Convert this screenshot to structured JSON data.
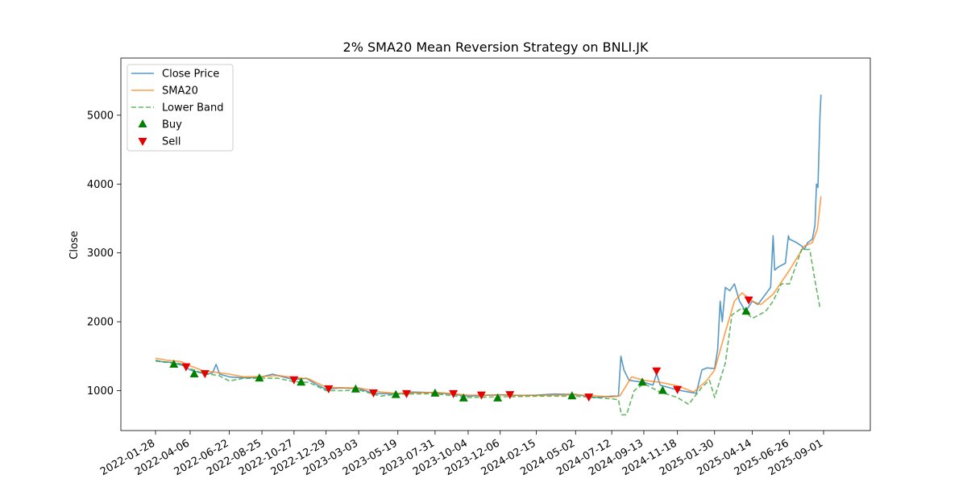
{
  "chart_data": {
    "type": "line",
    "title": "2% SMA20 Mean Reversion Strategy on BNLI.JK",
    "xlabel": "",
    "ylabel": "Close",
    "ylim": [
      420,
      5830
    ],
    "y_ticks": [
      1000,
      2000,
      3000,
      4000,
      5000
    ],
    "x_ticks": [
      "2022-01-28",
      "2022-04-06",
      "2022-06-22",
      "2022-08-25",
      "2022-10-27",
      "2022-12-29",
      "2023-03-03",
      "2023-05-19",
      "2023-07-31",
      "2023-10-04",
      "2023-12-06",
      "2024-02-15",
      "2024-05-02",
      "2024-07-12",
      "2024-09-13",
      "2024-11-18",
      "2025-01-30",
      "2025-04-14",
      "2025-06-26",
      "2025-09-01"
    ],
    "grid": false,
    "legend_position": "top-left",
    "series": [
      {
        "name": "Close Price",
        "kind": "line",
        "color": "#1f77b4",
        "points": [
          [
            "2022-01-28",
            1440
          ],
          [
            "2022-02-10",
            1420
          ],
          [
            "2022-03-01",
            1410
          ],
          [
            "2022-03-25",
            1360
          ],
          [
            "2022-04-06",
            1300
          ],
          [
            "2022-04-20",
            1270
          ],
          [
            "2022-05-10",
            1240
          ],
          [
            "2022-05-20",
            1260
          ],
          [
            "2022-05-27",
            1380
          ],
          [
            "2022-06-03",
            1240
          ],
          [
            "2022-06-22",
            1200
          ],
          [
            "2022-07-10",
            1190
          ],
          [
            "2022-08-01",
            1185
          ],
          [
            "2022-08-25",
            1200
          ],
          [
            "2022-09-15",
            1240
          ],
          [
            "2022-10-05",
            1200
          ],
          [
            "2022-10-27",
            1160
          ],
          [
            "2022-11-20",
            1180
          ],
          [
            "2022-12-10",
            1090
          ],
          [
            "2022-12-29",
            1020
          ],
          [
            "2023-01-25",
            1040
          ],
          [
            "2023-03-03",
            1030
          ],
          [
            "2023-04-01",
            960
          ],
          [
            "2023-05-19",
            950
          ],
          [
            "2023-06-15",
            980
          ],
          [
            "2023-07-31",
            970
          ],
          [
            "2023-09-01",
            950
          ],
          [
            "2023-10-04",
            920
          ],
          [
            "2023-11-05",
            930
          ],
          [
            "2023-12-06",
            940
          ],
          [
            "2024-01-15",
            930
          ],
          [
            "2024-02-15",
            935
          ],
          [
            "2024-03-20",
            950
          ],
          [
            "2024-05-02",
            945
          ],
          [
            "2024-06-10",
            900
          ],
          [
            "2024-07-12",
            920
          ],
          [
            "2024-07-25",
            920
          ],
          [
            "2024-07-30",
            1500
          ],
          [
            "2024-08-05",
            1300
          ],
          [
            "2024-08-15",
            1150
          ],
          [
            "2024-09-13",
            1120
          ],
          [
            "2024-10-01",
            1080
          ],
          [
            "2024-10-08",
            1250
          ],
          [
            "2024-10-15",
            1080
          ],
          [
            "2024-11-18",
            1010
          ],
          [
            "2024-12-10",
            980
          ],
          [
            "2024-12-25",
            960
          ],
          [
            "2025-01-05",
            1300
          ],
          [
            "2025-01-15",
            1330
          ],
          [
            "2025-01-30",
            1320
          ],
          [
            "2025-02-05",
            1600
          ],
          [
            "2025-02-10",
            2300
          ],
          [
            "2025-02-14",
            2000
          ],
          [
            "2025-02-20",
            2500
          ],
          [
            "2025-03-01",
            2450
          ],
          [
            "2025-03-10",
            2550
          ],
          [
            "2025-03-20",
            2300
          ],
          [
            "2025-04-01",
            2150
          ],
          [
            "2025-04-14",
            2300
          ],
          [
            "2025-04-25",
            2250
          ],
          [
            "2025-05-10",
            2400
          ],
          [
            "2025-05-20",
            2500
          ],
          [
            "2025-05-25",
            3250
          ],
          [
            "2025-05-28",
            2750
          ],
          [
            "2025-06-05",
            2800
          ],
          [
            "2025-06-18",
            2850
          ],
          [
            "2025-06-24",
            3250
          ],
          [
            "2025-06-26",
            3200
          ],
          [
            "2025-07-10",
            3150
          ],
          [
            "2025-07-20",
            3100
          ],
          [
            "2025-07-25",
            3050
          ],
          [
            "2025-08-01",
            3150
          ],
          [
            "2025-08-10",
            3200
          ],
          [
            "2025-08-15",
            3400
          ],
          [
            "2025-08-18",
            4000
          ],
          [
            "2025-08-21",
            3950
          ],
          [
            "2025-08-25",
            5000
          ],
          [
            "2025-08-27",
            5300
          ]
        ]
      },
      {
        "name": "SMA20",
        "kind": "line",
        "color": "#ff7f0e",
        "points": [
          [
            "2022-01-28",
            1470
          ],
          [
            "2022-02-20",
            1440
          ],
          [
            "2022-03-20",
            1420
          ],
          [
            "2022-04-06",
            1360
          ],
          [
            "2022-05-01",
            1290
          ],
          [
            "2022-06-01",
            1260
          ],
          [
            "2022-06-22",
            1240
          ],
          [
            "2022-07-20",
            1200
          ],
          [
            "2022-08-25",
            1205
          ],
          [
            "2022-09-25",
            1220
          ],
          [
            "2022-10-27",
            1190
          ],
          [
            "2022-11-25",
            1170
          ],
          [
            "2022-12-29",
            1050
          ],
          [
            "2023-02-01",
            1040
          ],
          [
            "2023-03-03",
            1040
          ],
          [
            "2023-04-15",
            980
          ],
          [
            "2023-05-19",
            960
          ],
          [
            "2023-07-31",
            975
          ],
          [
            "2023-10-04",
            935
          ],
          [
            "2023-12-06",
            935
          ],
          [
            "2024-02-15",
            930
          ],
          [
            "2024-05-02",
            940
          ],
          [
            "2024-07-12",
            910
          ],
          [
            "2024-07-28",
            925
          ],
          [
            "2024-08-20",
            1200
          ],
          [
            "2024-09-13",
            1150
          ],
          [
            "2024-10-15",
            1120
          ],
          [
            "2024-11-18",
            1070
          ],
          [
            "2024-12-20",
            980
          ],
          [
            "2025-01-15",
            1150
          ],
          [
            "2025-01-30",
            1300
          ],
          [
            "2025-02-20",
            1850
          ],
          [
            "2025-03-10",
            2300
          ],
          [
            "2025-03-25",
            2420
          ],
          [
            "2025-04-14",
            2300
          ],
          [
            "2025-05-01",
            2250
          ],
          [
            "2025-05-25",
            2400
          ],
          [
            "2025-06-26",
            2750
          ],
          [
            "2025-07-25",
            3100
          ],
          [
            "2025-08-10",
            3150
          ],
          [
            "2025-08-20",
            3350
          ],
          [
            "2025-08-27",
            3820
          ]
        ]
      },
      {
        "name": "Lower Band",
        "kind": "dashed-line",
        "color": "#2ca02c",
        "points": [
          [
            "2022-01-28",
            1430
          ],
          [
            "2022-02-20",
            1410
          ],
          [
            "2022-03-20",
            1390
          ],
          [
            "2022-04-06",
            1320
          ],
          [
            "2022-05-01",
            1250
          ],
          [
            "2022-06-01",
            1220
          ],
          [
            "2022-06-22",
            1140
          ],
          [
            "2022-07-20",
            1180
          ],
          [
            "2022-08-25",
            1180
          ],
          [
            "2022-09-25",
            1180
          ],
          [
            "2022-10-27",
            1130
          ],
          [
            "2022-11-25",
            1120
          ],
          [
            "2022-12-29",
            1000
          ],
          [
            "2023-02-01",
            1000
          ],
          [
            "2023-03-03",
            1010
          ],
          [
            "2023-04-15",
            920
          ],
          [
            "2023-05-19",
            950
          ],
          [
            "2023-07-31",
            955
          ],
          [
            "2023-10-04",
            900
          ],
          [
            "2023-12-06",
            910
          ],
          [
            "2024-02-15",
            920
          ],
          [
            "2024-05-02",
            920
          ],
          [
            "2024-07-12",
            880
          ],
          [
            "2024-07-25",
            870
          ],
          [
            "2024-07-31",
            650
          ],
          [
            "2024-08-10",
            650
          ],
          [
            "2024-08-25",
            1000
          ],
          [
            "2024-09-13",
            1100
          ],
          [
            "2024-10-15",
            980
          ],
          [
            "2024-11-18",
            900
          ],
          [
            "2024-12-10",
            800
          ],
          [
            "2025-01-05",
            1050
          ],
          [
            "2025-01-20",
            1150
          ],
          [
            "2025-01-30",
            900
          ],
          [
            "2025-02-20",
            1400
          ],
          [
            "2025-03-05",
            2100
          ],
          [
            "2025-03-25",
            2200
          ],
          [
            "2025-04-14",
            2050
          ],
          [
            "2025-05-10",
            2150
          ],
          [
            "2025-05-25",
            2300
          ],
          [
            "2025-06-10",
            2550
          ],
          [
            "2025-06-26",
            2550
          ],
          [
            "2025-07-20",
            3050
          ],
          [
            "2025-08-05",
            3050
          ],
          [
            "2025-08-15",
            2600
          ],
          [
            "2025-08-25",
            2200
          ]
        ]
      },
      {
        "name": "Buy",
        "kind": "marker-up",
        "color": "#008000",
        "points": [
          [
            "2022-03-05",
            1380
          ],
          [
            "2022-04-14",
            1240
          ],
          [
            "2022-08-20",
            1180
          ],
          [
            "2022-11-10",
            1120
          ],
          [
            "2023-02-25",
            1020
          ],
          [
            "2023-05-15",
            940
          ],
          [
            "2023-07-31",
            960
          ],
          [
            "2023-09-25",
            890
          ],
          [
            "2023-12-01",
            890
          ],
          [
            "2024-04-25",
            920
          ],
          [
            "2024-09-10",
            1120
          ],
          [
            "2024-10-20",
            1000
          ],
          [
            "2025-04-02",
            2150
          ]
        ]
      },
      {
        "name": "Sell",
        "kind": "marker-down",
        "color": "#e60000",
        "points": [
          [
            "2022-03-29",
            1350
          ],
          [
            "2022-05-05",
            1250
          ],
          [
            "2022-10-27",
            1160
          ],
          [
            "2023-01-03",
            1030
          ],
          [
            "2023-04-01",
            970
          ],
          [
            "2023-06-05",
            960
          ],
          [
            "2023-09-05",
            960
          ],
          [
            "2023-10-30",
            940
          ],
          [
            "2023-12-25",
            945
          ],
          [
            "2024-05-28",
            910
          ],
          [
            "2024-10-08",
            1290
          ],
          [
            "2024-11-18",
            1020
          ],
          [
            "2025-04-07",
            2320
          ]
        ]
      }
    ]
  }
}
